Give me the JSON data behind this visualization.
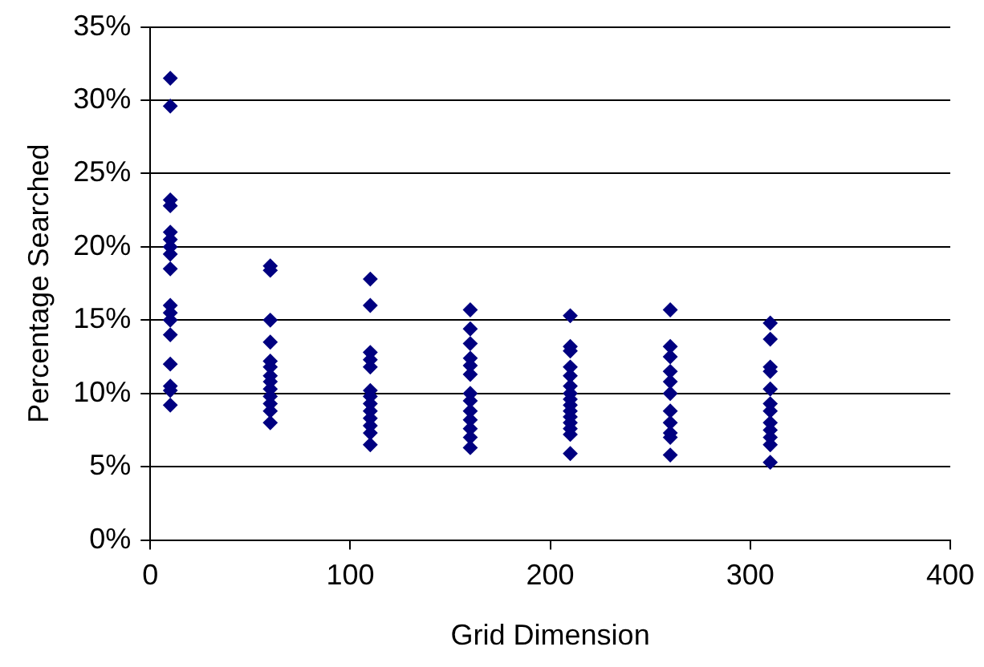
{
  "chart_data": {
    "type": "scatter",
    "xlabel": "Grid Dimension",
    "ylabel": "Percentage Searched",
    "x": [
      10,
      10,
      10,
      10,
      10,
      10,
      10,
      10,
      10,
      10,
      10,
      10,
      10,
      10,
      10,
      10,
      10,
      60,
      60,
      60,
      60,
      60,
      60,
      60,
      60,
      60,
      60,
      60,
      60,
      60,
      110,
      110,
      110,
      110,
      110,
      110,
      110,
      110,
      110,
      110,
      110,
      110,
      110,
      160,
      160,
      160,
      160,
      160,
      160,
      160,
      160,
      160,
      160,
      160,
      160,
      160,
      210,
      210,
      210,
      210,
      210,
      210,
      210,
      210,
      210,
      210,
      210,
      210,
      210,
      210,
      210,
      260,
      260,
      260,
      260,
      260,
      260,
      260,
      260,
      260,
      260,
      260,
      310,
      310,
      310,
      310,
      310,
      310,
      310,
      310,
      310,
      310,
      310,
      310
    ],
    "series": [
      {
        "color": "#000080",
        "values": [
          31.5,
          29.6,
          23.2,
          22.8,
          21.0,
          20.5,
          20.0,
          19.5,
          18.5,
          16.0,
          15.5,
          15.0,
          14.0,
          12.0,
          10.5,
          10.2,
          9.2,
          18.7,
          18.4,
          15.0,
          13.5,
          12.2,
          11.8,
          11.2,
          10.8,
          10.3,
          9.8,
          9.3,
          8.8,
          8.0,
          17.8,
          16.0,
          12.8,
          12.3,
          11.8,
          10.2,
          9.8,
          9.3,
          8.8,
          8.3,
          7.8,
          7.3,
          6.5,
          15.7,
          14.4,
          13.4,
          12.4,
          11.9,
          11.3,
          10.0,
          9.5,
          8.8,
          8.2,
          7.6,
          7.0,
          6.3,
          15.3,
          13.2,
          12.9,
          11.8,
          11.2,
          10.5,
          10.0,
          9.6,
          9.2,
          8.8,
          8.4,
          8.0,
          7.6,
          7.2,
          5.9,
          15.7,
          13.2,
          12.5,
          11.5,
          10.8,
          10.0,
          8.8,
          8.0,
          7.3,
          7.0,
          5.8,
          14.8,
          13.7,
          11.8,
          11.5,
          10.3,
          9.3,
          8.8,
          8.0,
          7.5,
          7.0,
          6.5,
          5.3
        ]
      }
    ],
    "xlim": [
      0,
      400
    ],
    "xticks": [
      0,
      100,
      200,
      300,
      400
    ],
    "ylim": [
      0,
      35
    ],
    "yticks": [
      {
        "value": 0,
        "label": "0%"
      },
      {
        "value": 5,
        "label": "5%"
      },
      {
        "value": 10,
        "label": "10%"
      },
      {
        "value": 15,
        "label": "15%"
      },
      {
        "value": 20,
        "label": "20%"
      },
      {
        "value": 25,
        "label": "25%"
      },
      {
        "value": 30,
        "label": "30%"
      },
      {
        "value": 35,
        "label": "35%"
      }
    ],
    "grid": "y",
    "marker": "diamond",
    "legend": false
  }
}
